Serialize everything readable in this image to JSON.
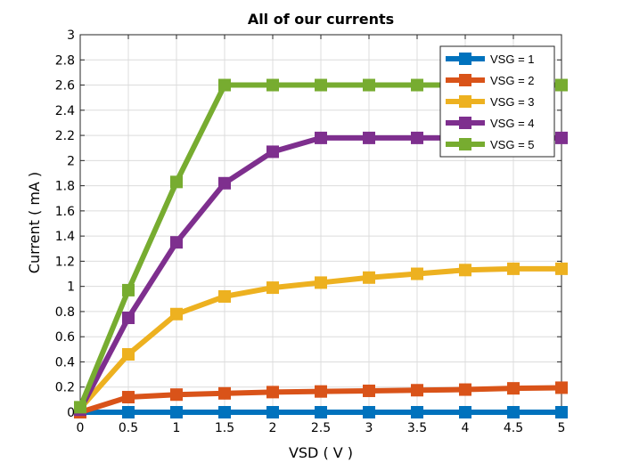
{
  "chart_data": {
    "type": "line",
    "title": "All of our currents",
    "xlabel": "VSD ( V )",
    "ylabel": "Current ( mA )",
    "x": [
      0,
      0.5,
      1,
      1.5,
      2,
      2.5,
      3,
      3.5,
      4,
      4.5,
      5
    ],
    "xlim": [
      0,
      5
    ],
    "ylim": [
      0,
      3
    ],
    "x_ticks": [
      "0",
      "0.5",
      "1",
      "1.5",
      "2",
      "2.5",
      "3",
      "3.5",
      "4",
      "4.5",
      "5"
    ],
    "y_ticks": [
      "0",
      "0.2",
      "0.4",
      "0.6",
      "0.8",
      "1",
      "1.2",
      "1.4",
      "1.6",
      "1.8",
      "2",
      "2.2",
      "2.4",
      "2.6",
      "2.8",
      "3"
    ],
    "grid": true,
    "legend_position": "top-right",
    "series": [
      {
        "name": "VSG = 1",
        "color": "#0072BD",
        "values": [
          0,
          0,
          0,
          0,
          0,
          0,
          0,
          0,
          0,
          0,
          0
        ]
      },
      {
        "name": "VSG = 2",
        "color": "#D95319",
        "values": [
          0,
          0.12,
          0.14,
          0.15,
          0.16,
          0.165,
          0.17,
          0.175,
          0.18,
          0.19,
          0.195
        ]
      },
      {
        "name": "VSG = 3",
        "color": "#EDB120",
        "values": [
          0.03,
          0.46,
          0.78,
          0.92,
          0.99,
          1.03,
          1.07,
          1.1,
          1.13,
          1.14,
          1.14
        ]
      },
      {
        "name": "VSG = 4",
        "color": "#7E2F8E",
        "values": [
          0.02,
          0.75,
          1.35,
          1.82,
          2.07,
          2.18,
          2.18,
          2.18,
          2.18,
          2.18,
          2.18
        ]
      },
      {
        "name": "VSG = 5",
        "color": "#77AC30",
        "values": [
          0.04,
          0.97,
          1.83,
          2.6,
          2.6,
          2.6,
          2.6,
          2.6,
          2.6,
          2.6,
          2.6
        ]
      }
    ]
  }
}
